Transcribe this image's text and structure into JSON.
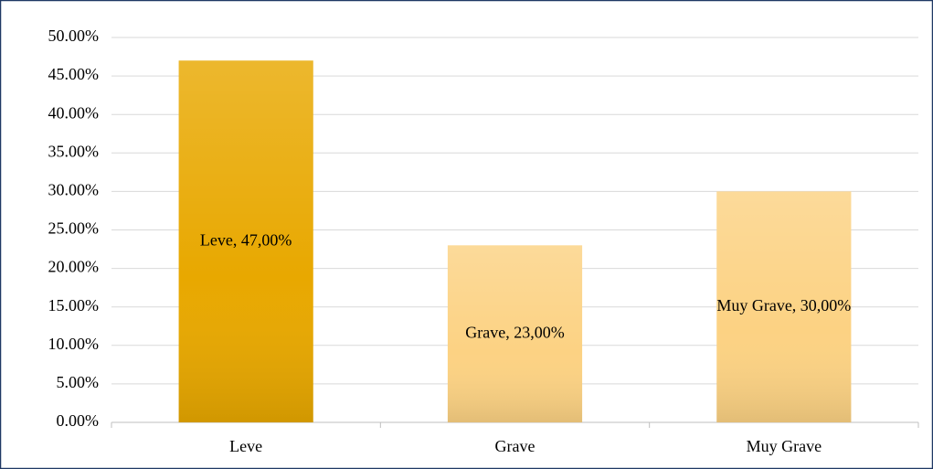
{
  "chart_data": {
    "type": "bar",
    "categories": [
      "Leve",
      "Grave",
      "Muy Grave"
    ],
    "values": [
      47,
      23,
      30
    ],
    "value_labels": [
      "Leve, 47,00%",
      "Grave, 23,00%",
      "Muy Grave, 30,00%"
    ],
    "colors": [
      "#e8a800",
      "#fcd283",
      "#fcd283"
    ],
    "ylim": [
      0,
      50
    ],
    "yticks": [
      {
        "value": 0,
        "label": "0.00%"
      },
      {
        "value": 5,
        "label": "5.00%"
      },
      {
        "value": 10,
        "label": "10.00%"
      },
      {
        "value": 15,
        "label": "15.00%"
      },
      {
        "value": 20,
        "label": "20.00%"
      },
      {
        "value": 25,
        "label": "25.00%"
      },
      {
        "value": 30,
        "label": "30.00%"
      },
      {
        "value": 35,
        "label": "35.00%"
      },
      {
        "value": 40,
        "label": "40.00%"
      },
      {
        "value": 45,
        "label": "45.00%"
      },
      {
        "value": 50,
        "label": "50.00%"
      }
    ],
    "grid": true
  }
}
